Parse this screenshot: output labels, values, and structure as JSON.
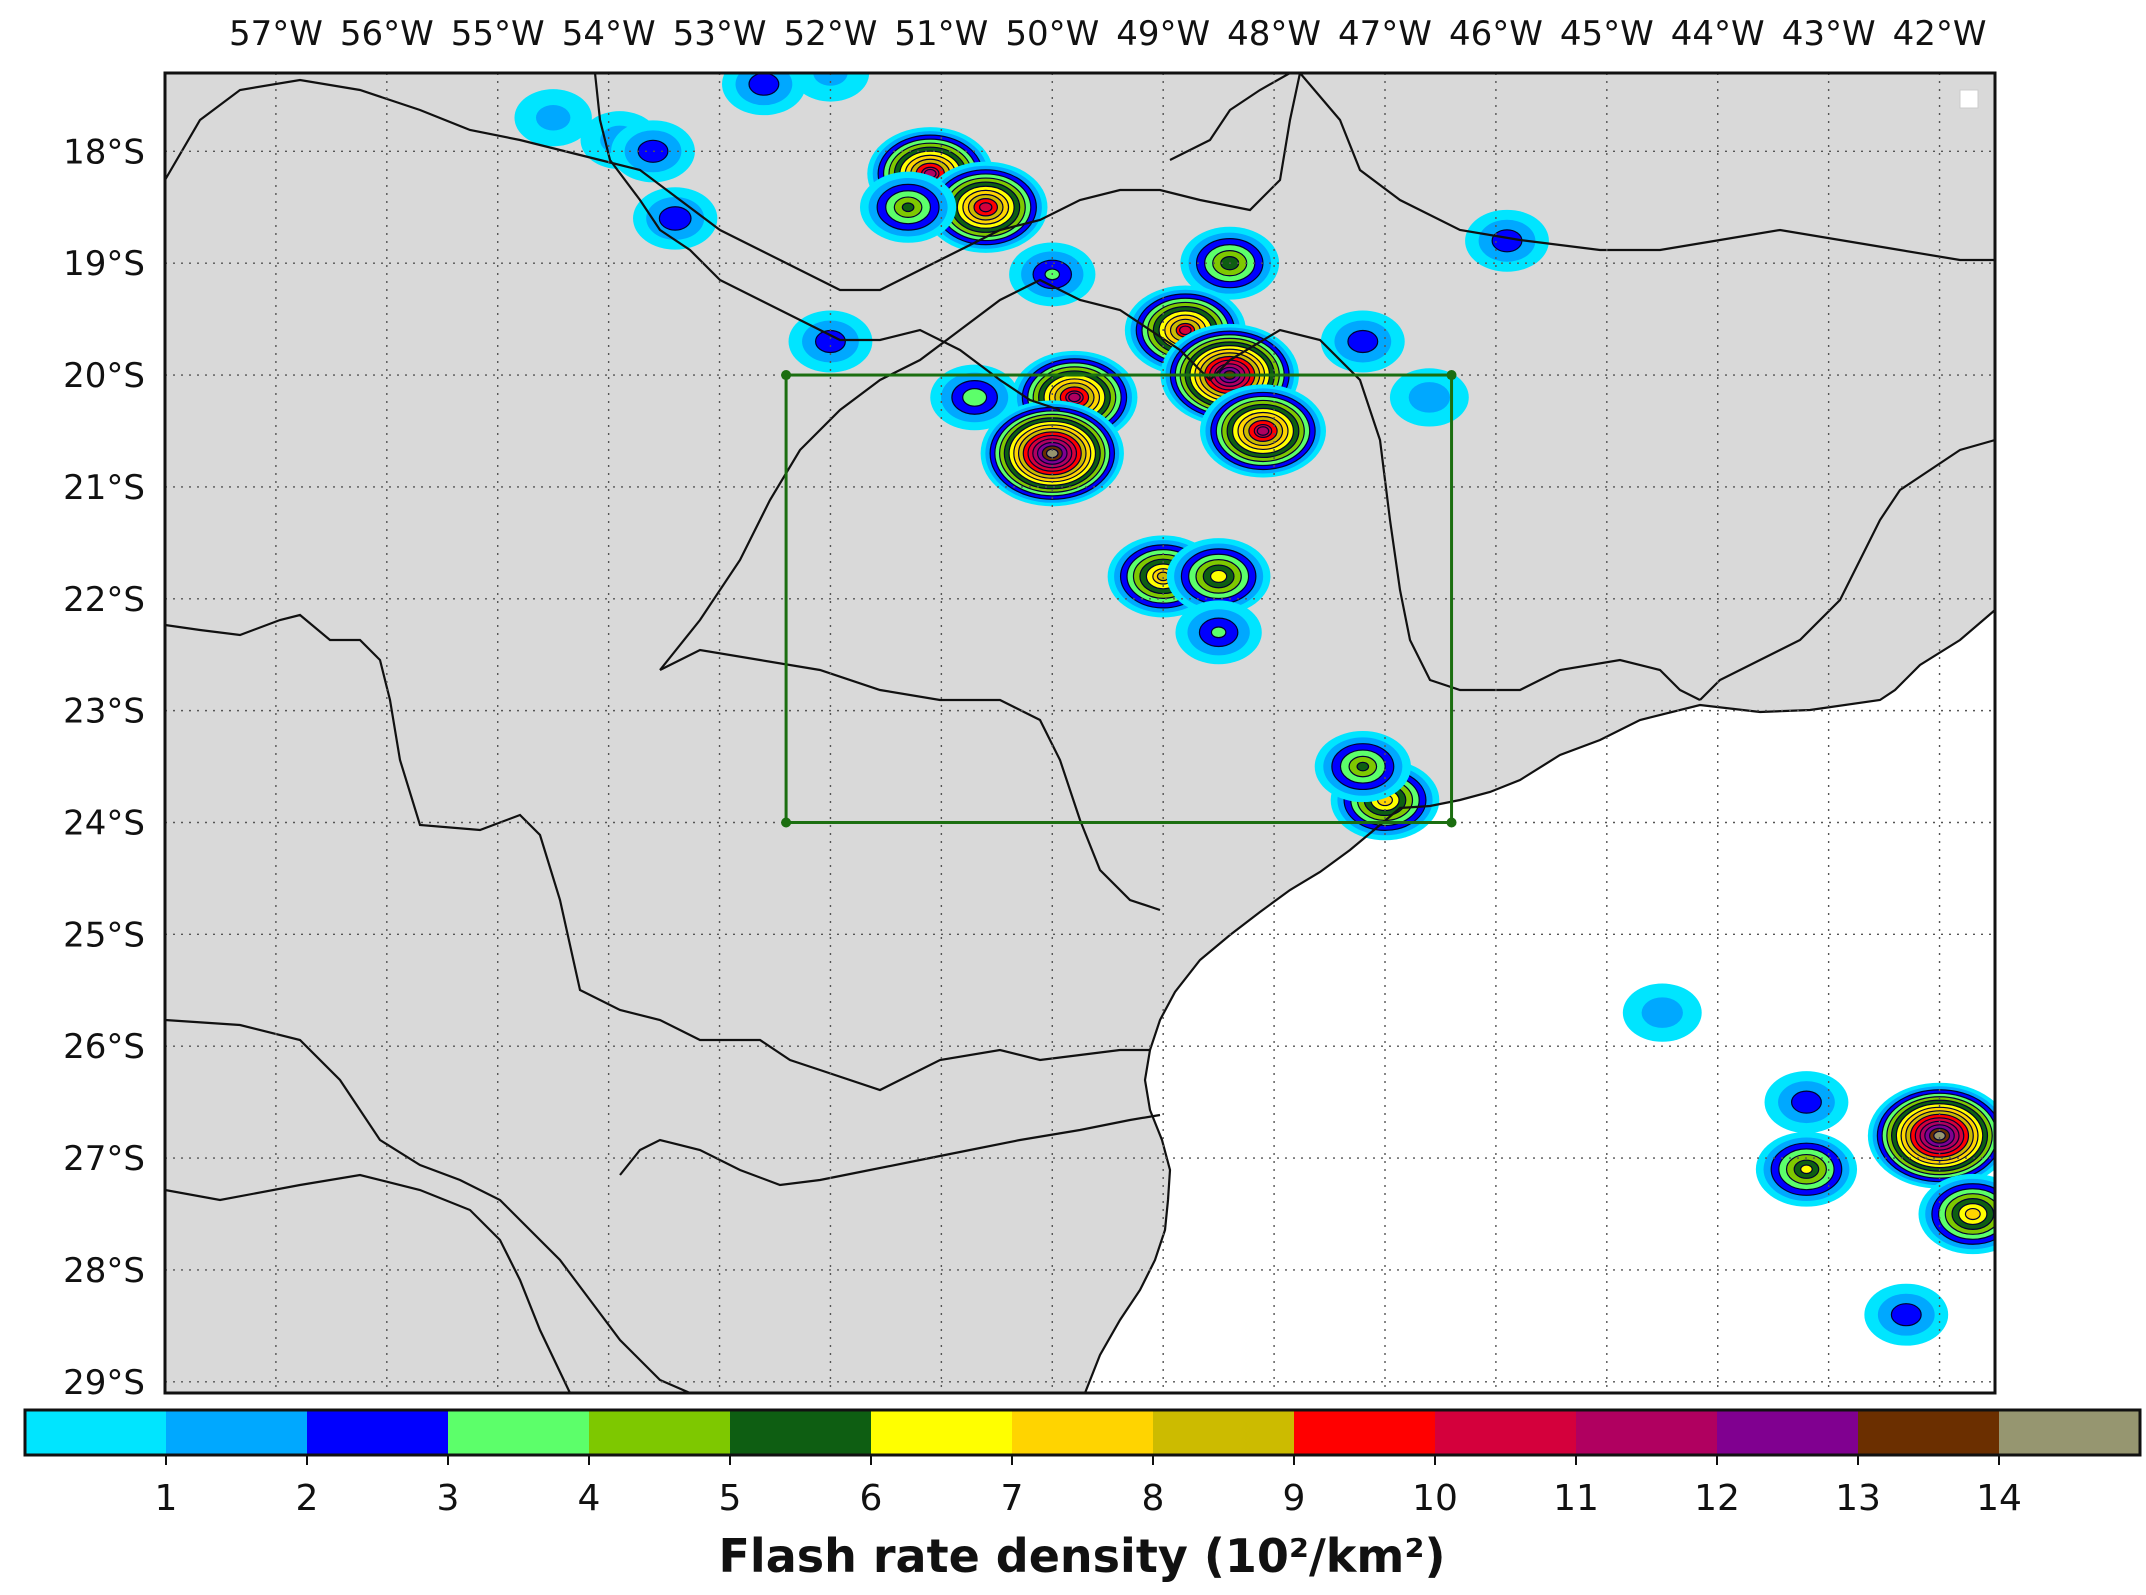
{
  "map": {
    "type": "contour-map",
    "lon_labels": [
      "57°W",
      "56°W",
      "55°W",
      "54°W",
      "53°W",
      "52°W",
      "51°W",
      "50°W",
      "49°W",
      "48°W",
      "47°W",
      "46°W",
      "45°W",
      "44°W",
      "43°W",
      "42°W"
    ],
    "lat_labels": [
      "18°S",
      "19°S",
      "20°S",
      "21°S",
      "22°S",
      "23°S",
      "24°S",
      "25°S",
      "26°S",
      "27°S",
      "28°S",
      "29°S"
    ],
    "lon_range": [
      -58.0,
      -41.5
    ],
    "lat_range": [
      -29.1,
      -17.3
    ],
    "gridlines": true,
    "land_color": "#d9d9d9",
    "ocean_color": "#ffffff",
    "box": {
      "lon_min": -52.4,
      "lon_max": -46.4,
      "lat_min": -24.0,
      "lat_max": -20.0,
      "color": "#1b6e10"
    },
    "cells": [
      {
        "lon": -54.5,
        "lat": -17.7,
        "peak": 1.2
      },
      {
        "lon": -53.9,
        "lat": -17.9,
        "peak": 1.4
      },
      {
        "lon": -53.6,
        "lat": -18.0,
        "peak": 2.5
      },
      {
        "lon": -53.4,
        "lat": -18.6,
        "peak": 2.6
      },
      {
        "lon": -52.6,
        "lat": -17.4,
        "peak": 2.5
      },
      {
        "lon": -52.0,
        "lat": -17.3,
        "peak": 1.2
      },
      {
        "lon": -51.1,
        "lat": -18.2,
        "peak": 11.0
      },
      {
        "lon": -50.6,
        "lat": -18.5,
        "peak": 10.5
      },
      {
        "lon": -51.3,
        "lat": -18.5,
        "peak": 5.0
      },
      {
        "lon": -50.0,
        "lat": -19.1,
        "peak": 3.0
      },
      {
        "lon": -52.0,
        "lat": -19.7,
        "peak": 2.5
      },
      {
        "lon": -48.4,
        "lat": -19.0,
        "peak": 5.5
      },
      {
        "lon": -45.9,
        "lat": -18.8,
        "peak": 2.5
      },
      {
        "lon": -47.2,
        "lat": -19.7,
        "peak": 2.5
      },
      {
        "lon": -48.8,
        "lat": -19.6,
        "peak": 10.0
      },
      {
        "lon": -48.4,
        "lat": -20.0,
        "peak": 13.5
      },
      {
        "lon": -48.1,
        "lat": -20.5,
        "peak": 11.0
      },
      {
        "lon": -50.7,
        "lat": -20.2,
        "peak": 3.5
      },
      {
        "lon": -49.8,
        "lat": -20.2,
        "peak": 11.0
      },
      {
        "lon": -50.0,
        "lat": -20.7,
        "peak": 14.5
      },
      {
        "lon": -46.6,
        "lat": -20.2,
        "peak": 1.5
      },
      {
        "lon": -49.0,
        "lat": -21.8,
        "peak": 8.0
      },
      {
        "lon": -48.5,
        "lat": -21.8,
        "peak": 6.5
      },
      {
        "lon": -48.5,
        "lat": -22.3,
        "peak": 3.0
      },
      {
        "lon": -47.0,
        "lat": -23.8,
        "peak": 7.5
      },
      {
        "lon": -47.2,
        "lat": -23.5,
        "peak": 5.0
      },
      {
        "lon": -44.5,
        "lat": -25.7,
        "peak": 1.5
      },
      {
        "lon": -43.2,
        "lat": -26.5,
        "peak": 2.5
      },
      {
        "lon": -43.2,
        "lat": -27.1,
        "peak": 6.0
      },
      {
        "lon": -42.0,
        "lat": -26.8,
        "peak": 14.5
      },
      {
        "lon": -41.7,
        "lat": -27.5,
        "peak": 7.5
      },
      {
        "lon": -42.3,
        "lat": -28.4,
        "peak": 2.5
      }
    ]
  },
  "colorbar": {
    "title": "Flash rate density (10²/km²)",
    "ticks": [
      "1",
      "2",
      "3",
      "4",
      "5",
      "6",
      "7",
      "8",
      "9",
      "10",
      "11",
      "12",
      "13",
      "14"
    ],
    "colors": [
      "#00e5ff",
      "#00a8ff",
      "#0000ff",
      "#5cff6a",
      "#7ec800",
      "#0e5e12",
      "#ffff00",
      "#ffd400",
      "#ccbb00",
      "#ff0000",
      "#d4003c",
      "#b00060",
      "#800090",
      "#6b2f00",
      "#969670"
    ]
  }
}
